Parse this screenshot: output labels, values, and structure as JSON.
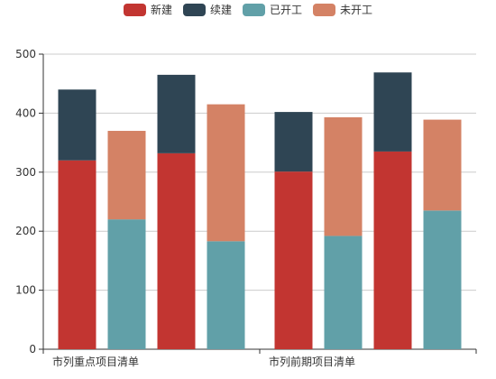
{
  "chart_data": {
    "type": "bar",
    "stacked": true,
    "categories": [
      "市列重点项目清单",
      "市列前期项目清单"
    ],
    "legend": [
      {
        "name": "新建",
        "color": "#c23531"
      },
      {
        "name": "续建",
        "color": "#2f4554"
      },
      {
        "name": "已开工",
        "color": "#61a0a8"
      },
      {
        "name": "未开工",
        "color": "#d48265"
      }
    ],
    "ylim": [
      0,
      500
    ],
    "yticks": [
      0,
      100,
      200,
      300,
      400,
      500
    ],
    "bar_groups": [
      {
        "category": 0,
        "stack": "新建/续建",
        "segments": [
          {
            "series": "新建",
            "value": 320
          },
          {
            "series": "续建",
            "value": 120
          }
        ]
      },
      {
        "category": 0,
        "stack": "已开工/未开工",
        "segments": [
          {
            "series": "已开工",
            "value": 220
          },
          {
            "series": "未开工",
            "value": 150
          }
        ]
      },
      {
        "category": 0,
        "stack": "新建/续建",
        "segments": [
          {
            "series": "新建",
            "value": 332
          },
          {
            "series": "续建",
            "value": 133
          }
        ]
      },
      {
        "category": 0,
        "stack": "已开工/未开工",
        "segments": [
          {
            "series": "已开工",
            "value": 183
          },
          {
            "series": "未开工",
            "value": 232
          }
        ]
      },
      {
        "category": 1,
        "stack": "新建/续建",
        "segments": [
          {
            "series": "新建",
            "value": 301
          },
          {
            "series": "续建",
            "value": 101
          }
        ]
      },
      {
        "category": 1,
        "stack": "已开工/未开工",
        "segments": [
          {
            "series": "已开工",
            "value": 192
          },
          {
            "series": "未开工",
            "value": 201
          }
        ]
      },
      {
        "category": 1,
        "stack": "新建/续建",
        "segments": [
          {
            "series": "新建",
            "value": 335
          },
          {
            "series": "续建",
            "value": 134
          }
        ]
      },
      {
        "category": 1,
        "stack": "已开工/未开工",
        "segments": [
          {
            "series": "已开工",
            "value": 235
          },
          {
            "series": "未开工",
            "value": 154
          }
        ]
      }
    ],
    "grid": true,
    "legend_position": "top-center"
  }
}
